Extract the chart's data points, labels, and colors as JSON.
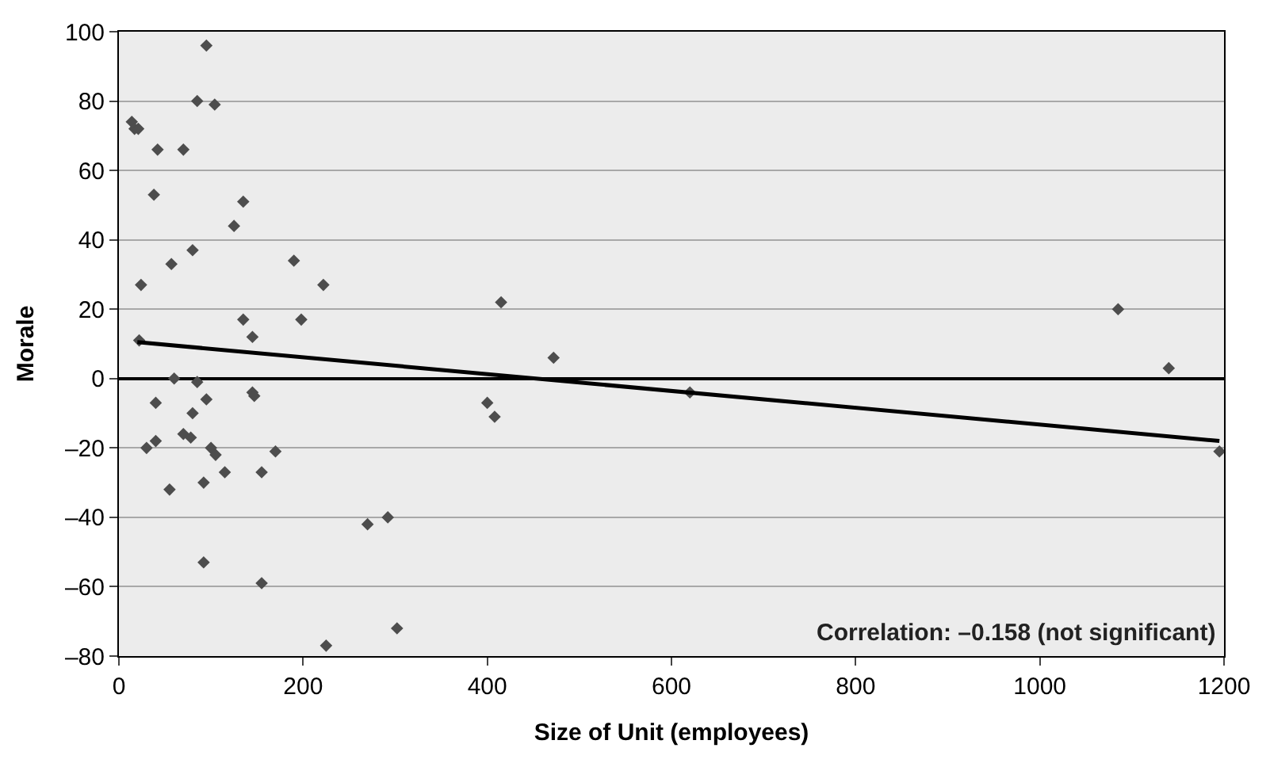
{
  "chart_data": {
    "type": "scatter",
    "xlabel": "Size of Unit (employees)",
    "ylabel": "Morale",
    "xlim": [
      0,
      1200
    ],
    "xticks": [
      0,
      200,
      400,
      600,
      800,
      1000,
      1200
    ],
    "ylim": [
      -80,
      100
    ],
    "yticks": [
      {
        "value": -80,
        "label": "–80"
      },
      {
        "value": -60,
        "label": "–60"
      },
      {
        "value": -40,
        "label": "–40"
      },
      {
        "value": -20,
        "label": "–20"
      },
      0,
      20,
      40,
      60,
      80,
      100
    ],
    "grid": "y",
    "annotations": [
      "Correlation: –0.158 (not significant)"
    ],
    "series": [
      {
        "marker": "diamond",
        "color": "#4d4d4d",
        "x": [
          95,
          14,
          17,
          21,
          85,
          104,
          42,
          70,
          38,
          135,
          125,
          80,
          57,
          190,
          24,
          222,
          135,
          198,
          145,
          22,
          415,
          472,
          1085,
          1140,
          1195,
          620,
          400,
          408,
          60,
          85,
          95,
          40,
          145,
          147,
          80,
          70,
          78,
          40,
          30,
          100,
          105,
          115,
          170,
          155,
          55,
          92,
          270,
          292,
          92,
          155,
          225,
          302
        ],
        "values": [
          96,
          74,
          72,
          72,
          80,
          79,
          66,
          66,
          53,
          51,
          44,
          37,
          33,
          34,
          27,
          27,
          17,
          17,
          12,
          11,
          22,
          6,
          20,
          3,
          -21,
          -4,
          -7,
          -11,
          0,
          -1,
          -6,
          -7,
          -4,
          -5,
          -10,
          -16,
          -17,
          -18,
          -20,
          -20,
          -22,
          -27,
          -21,
          -27,
          -32,
          -30,
          -42,
          -40,
          -53,
          -59,
          -77,
          -72
        ]
      },
      {
        "type": "line",
        "marker": "none",
        "color": "#000000",
        "x": [
          20,
          1195
        ],
        "values": [
          10.5,
          -18
        ]
      }
    ]
  }
}
